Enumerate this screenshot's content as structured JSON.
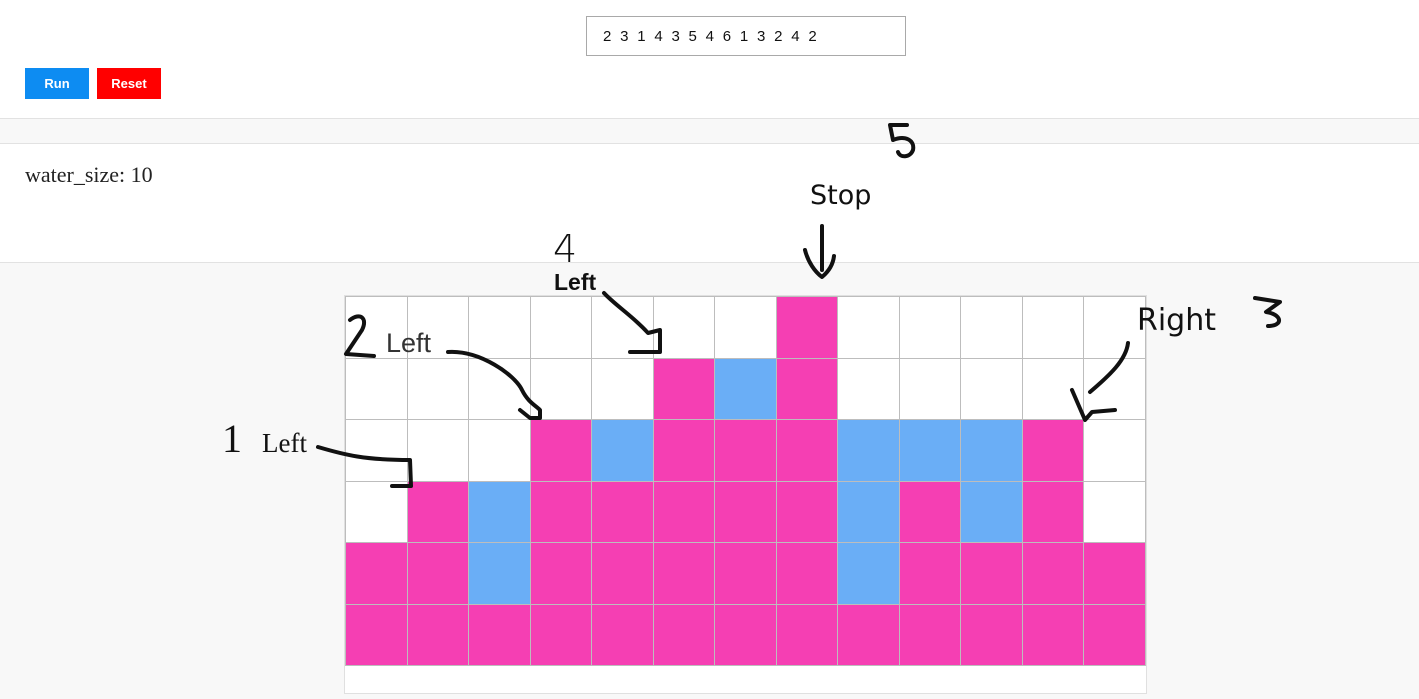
{
  "input": {
    "value": "2 3 1 4 3 5 4 6 1 3 2 4 2"
  },
  "buttons": {
    "run": "Run",
    "reset": "Reset"
  },
  "result": {
    "label": "water_size: 10"
  },
  "grid": {
    "heights": [
      2,
      3,
      1,
      4,
      3,
      5,
      4,
      6,
      1,
      3,
      2,
      4,
      2
    ],
    "water": [
      0,
      0,
      2,
      0,
      1,
      0,
      1,
      0,
      3,
      1,
      2,
      0,
      0
    ],
    "max_height": 6
  },
  "annotations": {
    "n1": "1",
    "n2": "2",
    "n3": "3",
    "n4": "4",
    "n5": "5",
    "left1": "Left",
    "left2": "Left",
    "left4": "Left",
    "right3": "Right",
    "stop": "Stop"
  },
  "colors": {
    "bar": "#f53fb3",
    "water": "#6aaef6",
    "empty": "#ffffff",
    "run": "#0d8cf2",
    "reset": "#ff0000"
  }
}
